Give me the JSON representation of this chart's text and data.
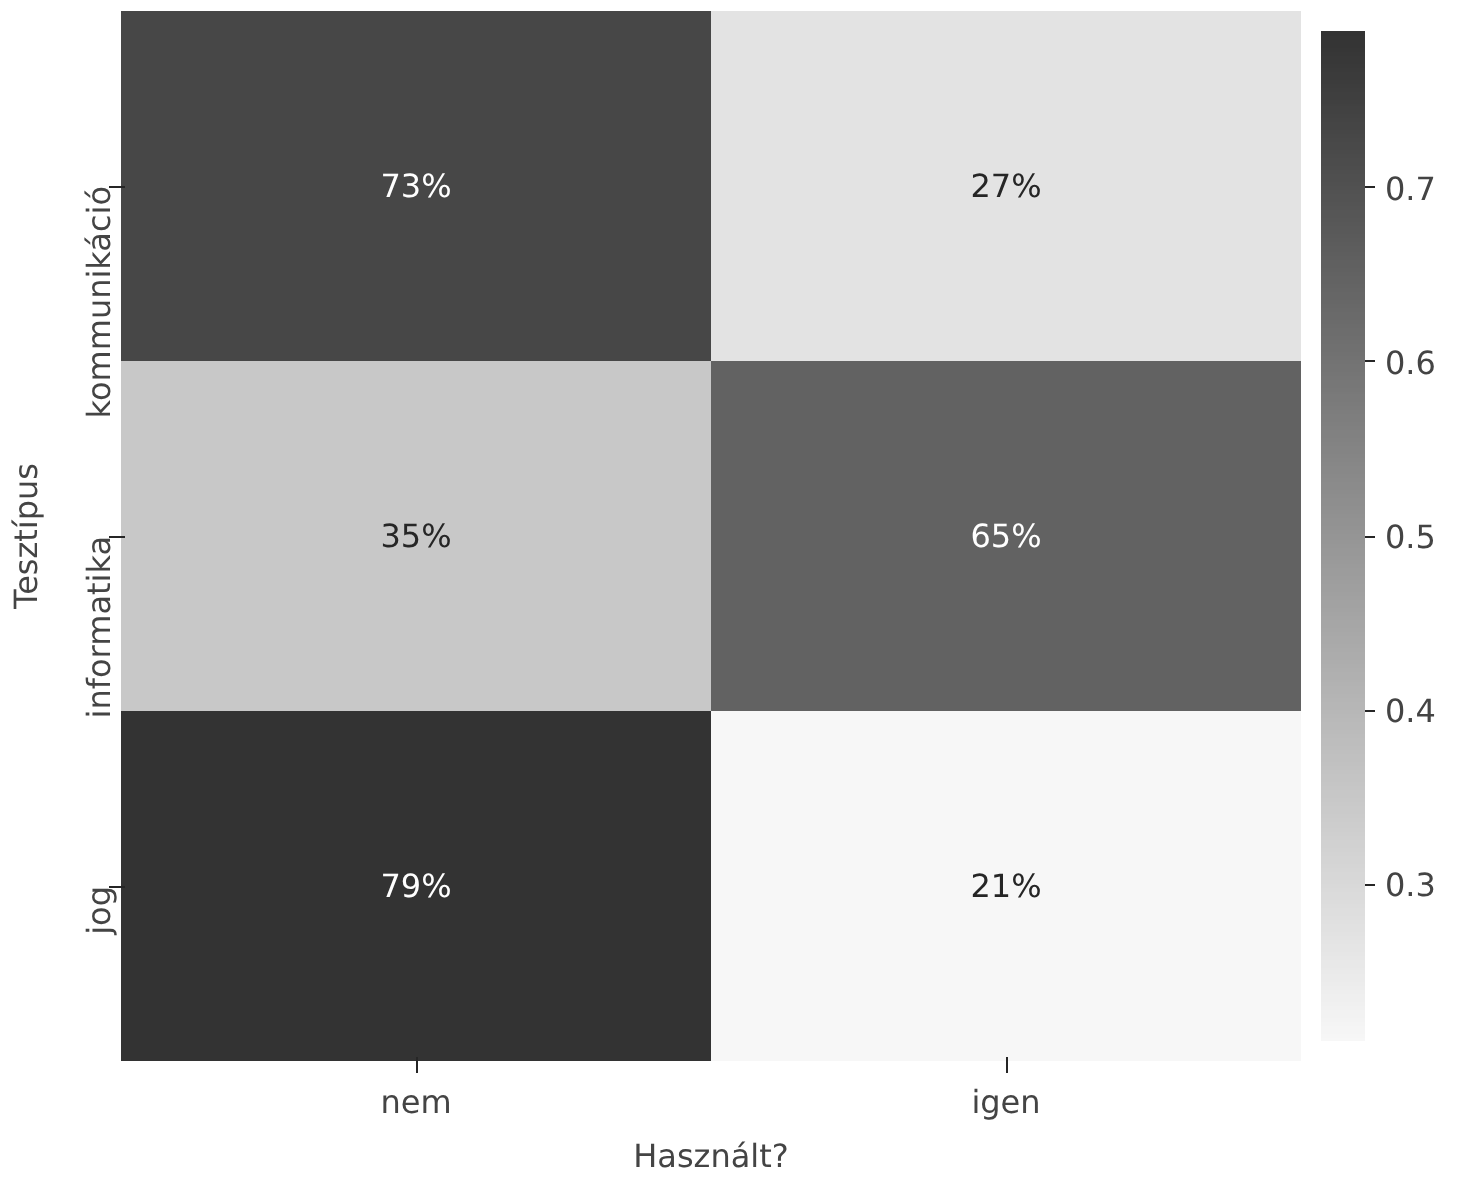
{
  "chart_data": {
    "type": "heatmap",
    "xlabel": "Használt?",
    "ylabel": "Tesztípus",
    "categories": [
      "nem",
      "igen"
    ],
    "y_categories": [
      "kommunikáció",
      "informatika",
      "jog"
    ],
    "cells": [
      [
        0.73,
        0.27
      ],
      [
        0.35,
        0.65
      ],
      [
        0.79,
        0.21
      ]
    ],
    "cell_labels": [
      [
        "73%",
        "27%"
      ],
      [
        "35%",
        "65%"
      ],
      [
        "79%",
        "21%"
      ]
    ],
    "clim": [
      0.21,
      0.79
    ],
    "cticks": [
      0.3,
      0.4,
      0.5,
      0.6,
      0.7
    ]
  }
}
